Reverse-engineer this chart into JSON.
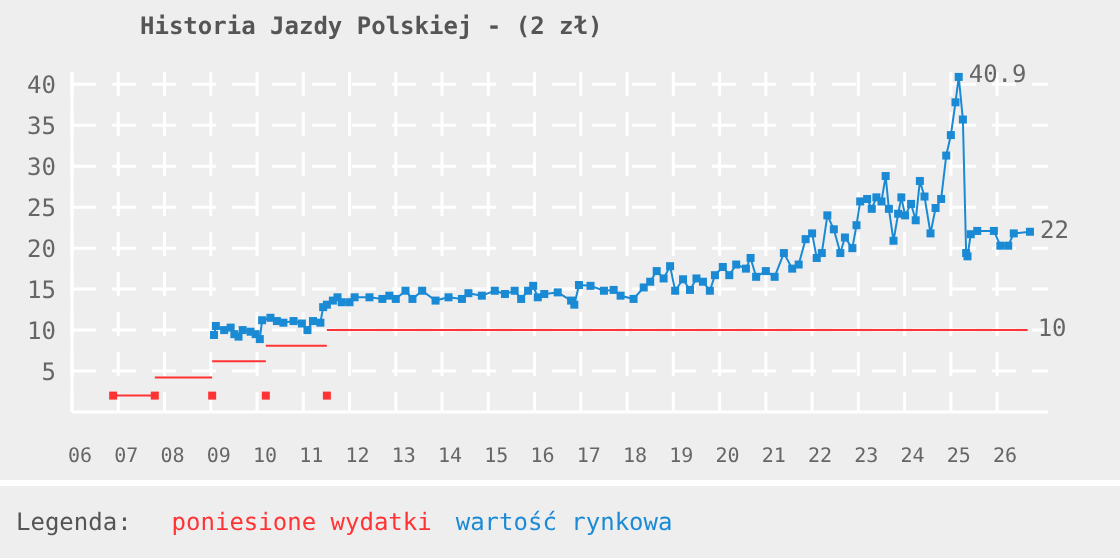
{
  "chart_data": {
    "type": "line",
    "title": "Historia Jazdy Polskiej - (2 zł)",
    "legend_title": "Legenda:",
    "legend": "bottom",
    "grid": true,
    "xlim": [
      2006,
      2027.1
    ],
    "xticks": [
      {
        "value": 2006,
        "label": "06"
      },
      {
        "value": 2007,
        "label": "07"
      },
      {
        "value": 2008,
        "label": "08"
      },
      {
        "value": 2009,
        "label": "09"
      },
      {
        "value": 2010,
        "label": "10"
      },
      {
        "value": 2011,
        "label": "11"
      },
      {
        "value": 2012,
        "label": "12"
      },
      {
        "value": 2013,
        "label": "13"
      },
      {
        "value": 2014,
        "label": "14"
      },
      {
        "value": 2015,
        "label": "15"
      },
      {
        "value": 2016,
        "label": "16"
      },
      {
        "value": 2017,
        "label": "17"
      },
      {
        "value": 2018,
        "label": "18"
      },
      {
        "value": 2019,
        "label": "19"
      },
      {
        "value": 2020,
        "label": "20"
      },
      {
        "value": 2021,
        "label": "21"
      },
      {
        "value": 2022,
        "label": "22"
      },
      {
        "value": 2023,
        "label": "23"
      },
      {
        "value": 2024,
        "label": "24"
      },
      {
        "value": 2025,
        "label": "25"
      },
      {
        "value": 2026,
        "label": "26"
      }
    ],
    "ylim": [
      0,
      41.5
    ],
    "yticks": [
      5,
      10,
      15,
      20,
      25,
      30,
      35,
      40
    ],
    "annotations": [
      {
        "text": "40.9",
        "x": 2025.17,
        "y": 40.9
      },
      {
        "text": "22",
        "x": 2026.71,
        "y": 22
      },
      {
        "text": "10",
        "x": 2026.66,
        "y": 10
      }
    ],
    "series": [
      {
        "name": "poniesione wydatki",
        "color": "#ff3333",
        "marker": "none",
        "x": [
          2006.89,
          2007.79
        ],
        "values": [
          2,
          2
        ]
      },
      {
        "color": "#ff3333",
        "marker": "none",
        "x": [
          2007.79,
          2009.03
        ],
        "values": [
          4.2,
          4.2
        ]
      },
      {
        "color": "#ff3333",
        "marker": "none",
        "x": [
          2009.03,
          2010.19
        ],
        "values": [
          6.2,
          6.2
        ]
      },
      {
        "color": "#ff3333",
        "marker": "none",
        "x": [
          2010.19,
          2011.51
        ],
        "values": [
          8.1,
          8.1
        ]
      },
      {
        "color": "#ff3333",
        "marker": "none",
        "x": [
          2011.51,
          2026.66
        ],
        "values": [
          10,
          10
        ]
      },
      {
        "type": "scatter",
        "color": "#ff3333",
        "marker": "square",
        "x": [
          2006.89,
          2007.79,
          2009.03,
          2010.19,
          2011.51
        ],
        "values": [
          2,
          2,
          2,
          2,
          2
        ]
      },
      {
        "name": "wartość rynkowa",
        "color": "#1a8ad4",
        "marker": "square",
        "x": [
          2009.07,
          2009.11,
          2009.29,
          2009.43,
          2009.51,
          2009.6,
          2009.69,
          2009.86,
          2009.97,
          2010.06,
          2010.11,
          2010.29,
          2010.43,
          2010.57,
          2010.79,
          2010.97,
          2011.09,
          2011.21,
          2011.37,
          2011.43,
          2011.51,
          2011.64,
          2011.74,
          2011.83,
          2012.0,
          2012.11,
          2012.43,
          2012.71,
          2012.86,
          2013.0,
          2013.21,
          2013.36,
          2013.57,
          2013.86,
          2014.14,
          2014.43,
          2014.57,
          2014.86,
          2015.14,
          2015.36,
          2015.57,
          2015.71,
          2015.86,
          2015.97,
          2016.07,
          2016.21,
          2016.5,
          2016.79,
          2016.86,
          2016.96,
          2017.21,
          2017.5,
          2017.71,
          2017.86,
          2018.14,
          2018.36,
          2018.5,
          2018.64,
          2018.79,
          2018.93,
          2019.04,
          2019.21,
          2019.36,
          2019.5,
          2019.64,
          2019.79,
          2019.9,
          2020.07,
          2020.21,
          2020.36,
          2020.57,
          2020.67,
          2020.79,
          2021.0,
          2021.19,
          2021.39,
          2021.57,
          2021.71,
          2021.86,
          2022.0,
          2022.1,
          2022.21,
          2022.33,
          2022.47,
          2022.61,
          2022.71,
          2022.87,
          2022.96,
          2023.04,
          2023.19,
          2023.29,
          2023.39,
          2023.5,
          2023.59,
          2023.66,
          2023.76,
          2023.86,
          2023.93,
          2024.01,
          2024.14,
          2024.24,
          2024.33,
          2024.43,
          2024.56,
          2024.67,
          2024.79,
          2024.9,
          2025.0,
          2025.1,
          2025.17,
          2025.26,
          2025.33,
          2025.36,
          2025.43,
          2025.57,
          2025.93,
          2026.07,
          2026.24,
          2026.36,
          2026.71
        ],
        "values": [
          9.4,
          10.5,
          10.0,
          10.3,
          9.5,
          9.2,
          10.0,
          9.8,
          9.5,
          8.9,
          11.2,
          11.5,
          11.1,
          10.9,
          11.1,
          10.8,
          10.0,
          11.1,
          10.9,
          12.8,
          13.1,
          13.6,
          14.0,
          13.4,
          13.4,
          14.0,
          14.0,
          13.8,
          14.2,
          13.8,
          14.8,
          13.8,
          14.8,
          13.6,
          14.0,
          13.8,
          14.5,
          14.2,
          14.8,
          14.4,
          14.8,
          13.8,
          14.8,
          15.4,
          14.0,
          14.4,
          14.6,
          13.6,
          13.1,
          15.5,
          15.4,
          14.8,
          14.9,
          14.2,
          13.8,
          15.2,
          15.9,
          17.2,
          16.3,
          17.8,
          14.8,
          16.2,
          14.9,
          16.3,
          15.9,
          14.8,
          16.7,
          17.7,
          16.7,
          18.0,
          17.5,
          18.8,
          16.5,
          17.2,
          16.5,
          19.4,
          17.5,
          18.0,
          21.1,
          21.8,
          18.8,
          19.4,
          24.0,
          22.3,
          19.4,
          21.3,
          20.0,
          22.8,
          25.7,
          26.0,
          24.8,
          26.2,
          25.7,
          28.8,
          24.8,
          20.9,
          24.2,
          26.2,
          24.0,
          25.4,
          23.4,
          28.2,
          26.3,
          21.8,
          24.9,
          26.0,
          31.3,
          33.8,
          37.8,
          40.9,
          35.7,
          19.4,
          19.0,
          21.7,
          22.1,
          22.1,
          20.3,
          20.3,
          21.8,
          22
        ]
      }
    ]
  }
}
